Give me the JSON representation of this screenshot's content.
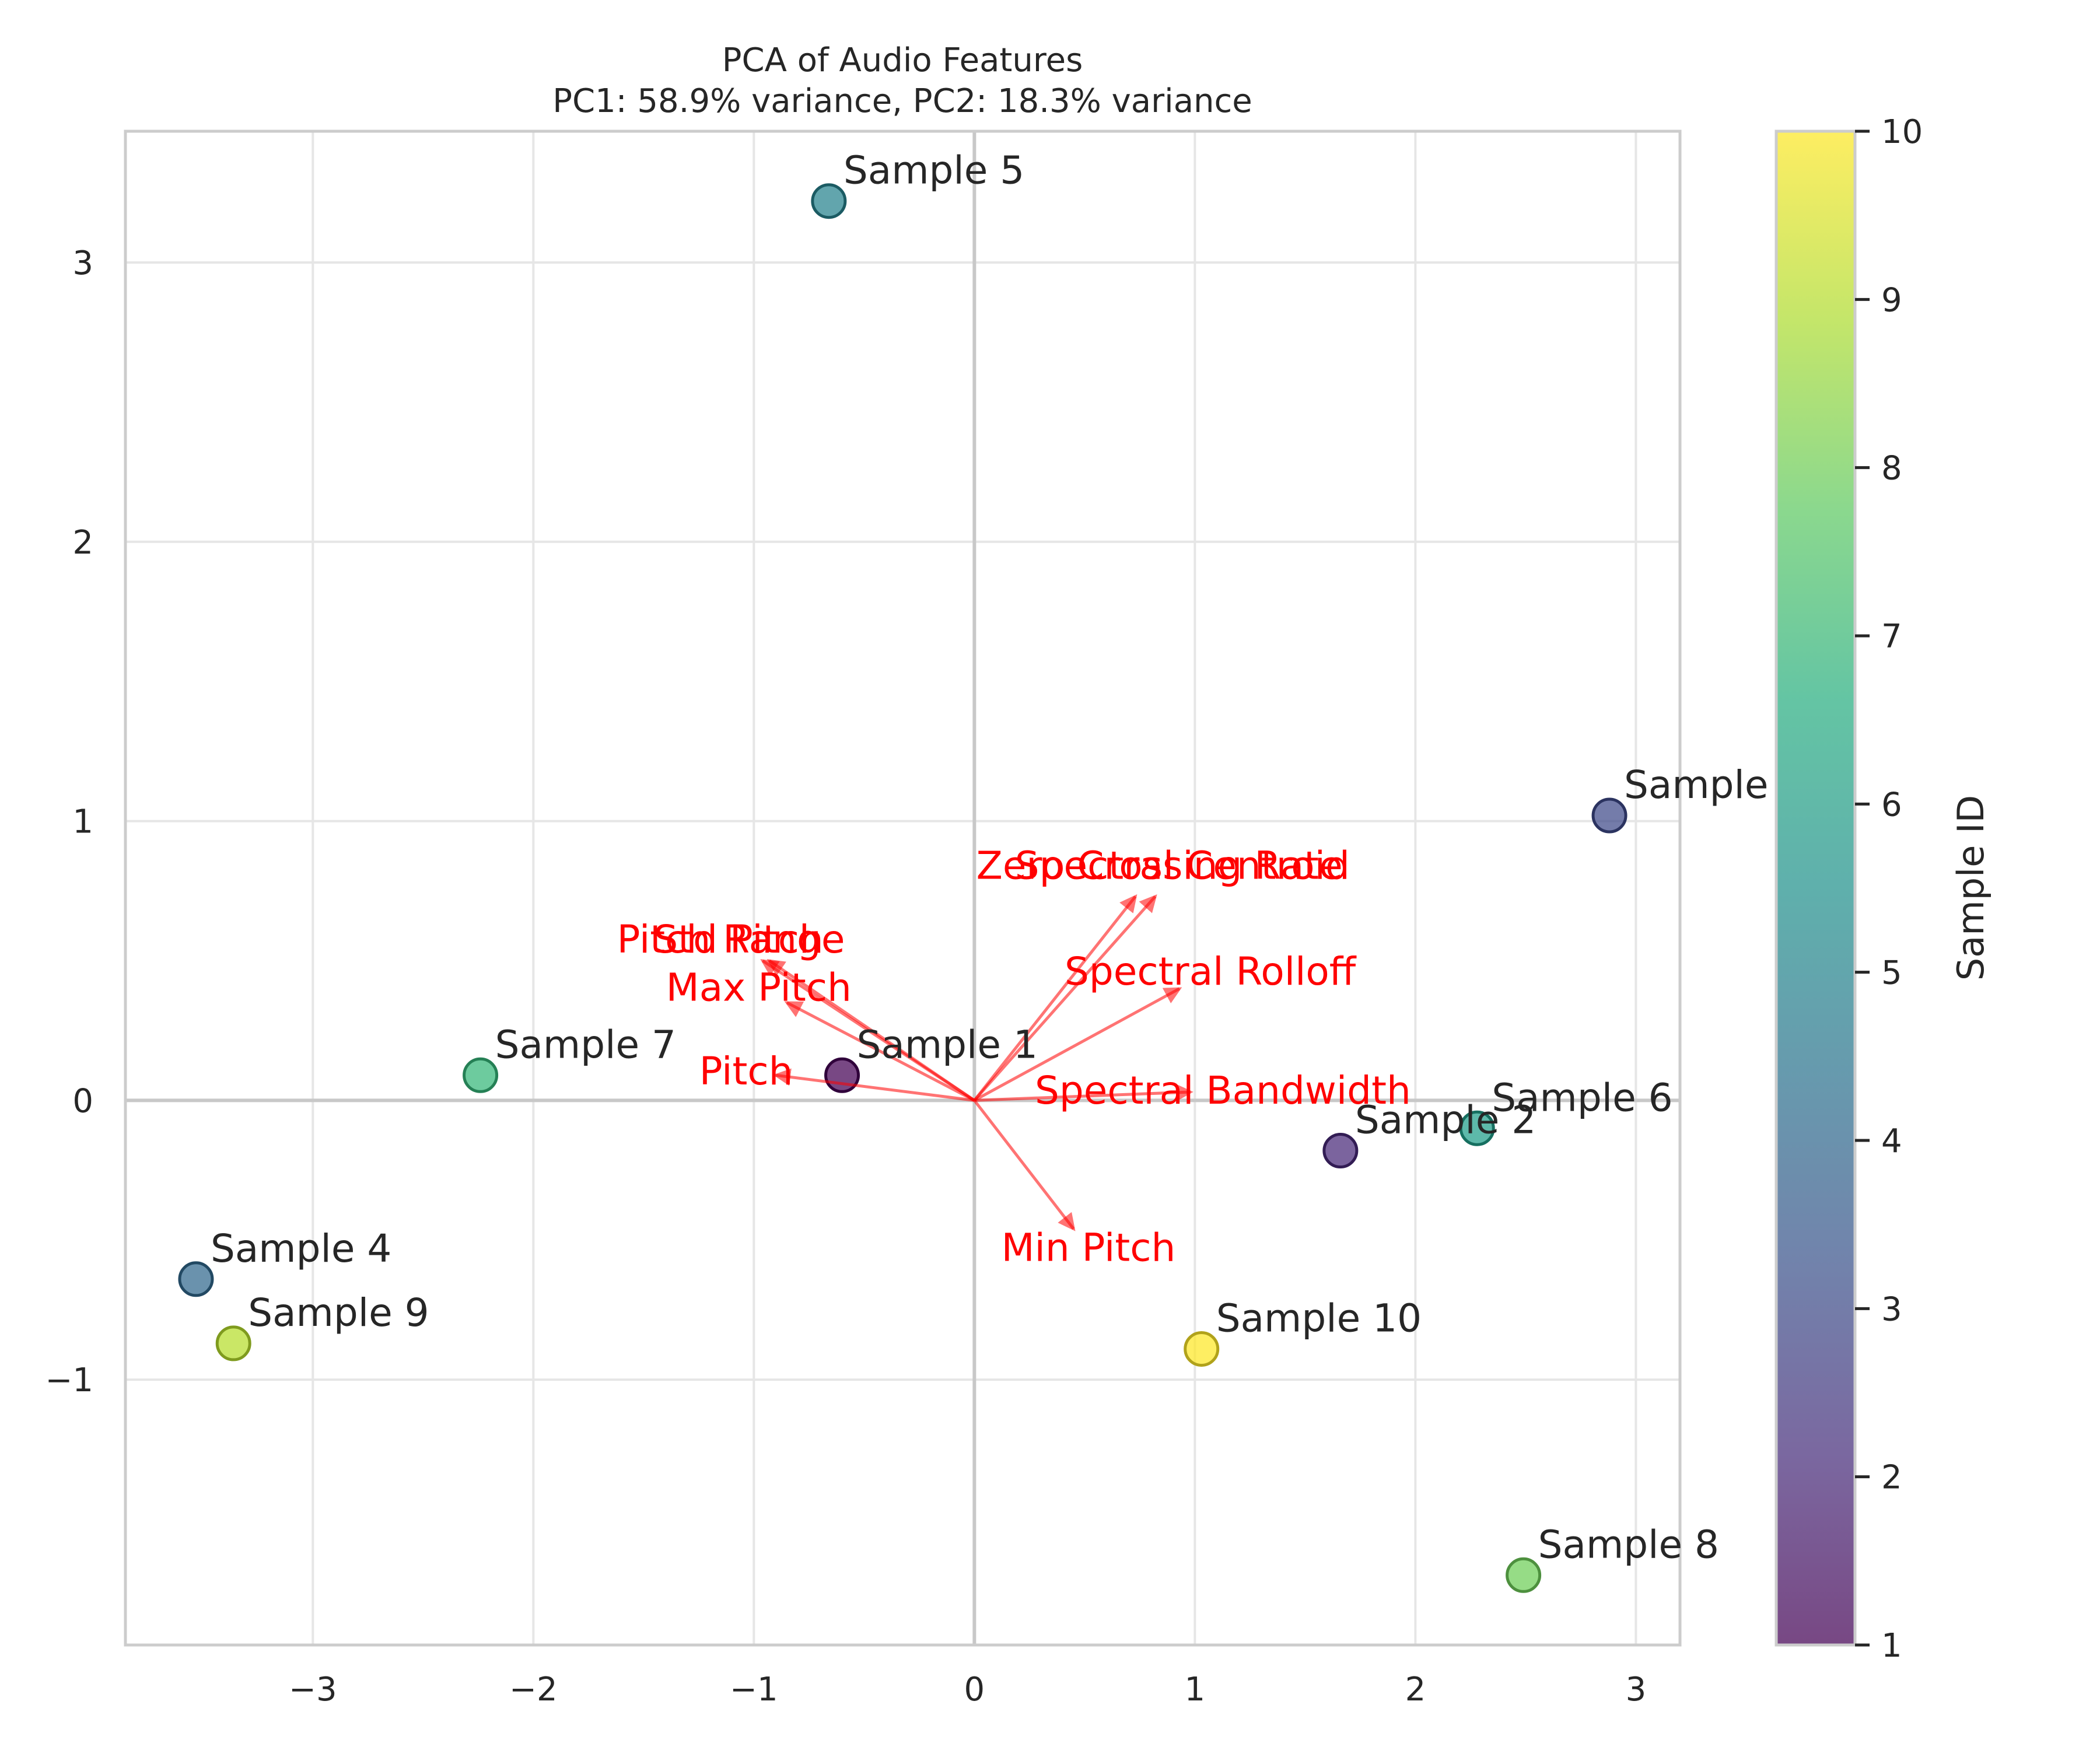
{
  "chart_data": {
    "type": "scatter",
    "title": "PCA of Audio Features",
    "subtitle": "PC1: 58.9% variance, PC2: 18.3% variance",
    "xlabel": "",
    "ylabel": "",
    "xlim": [
      -3.85,
      3.2
    ],
    "ylim": [
      -1.95,
      3.47
    ],
    "xticks": [
      -3,
      -2,
      -1,
      0,
      1,
      2,
      3
    ],
    "yticks": [
      -1,
      0,
      1,
      2,
      3
    ],
    "xtick_labels": [
      "−3",
      "−2",
      "−1",
      "0",
      "1",
      "2",
      "3"
    ],
    "ytick_labels": [
      "−1",
      "0",
      "1",
      "2",
      "3"
    ],
    "grid": true,
    "colormap": "viridis",
    "colorbar": {
      "label": "Sample ID",
      "range": [
        1,
        10
      ],
      "ticks": [
        1,
        2,
        3,
        4,
        5,
        6,
        7,
        8,
        9,
        10
      ],
      "tick_labels": [
        "1",
        "2",
        "3",
        "4",
        "5",
        "6",
        "7",
        "8",
        "9",
        "10"
      ]
    },
    "points": [
      {
        "label": "Sample 1",
        "id": 1,
        "x": -0.6,
        "y": 0.09
      },
      {
        "label": "Sample 2",
        "id": 2,
        "x": 1.66,
        "y": -0.18
      },
      {
        "label": "Sample",
        "id": 3,
        "x": 2.88,
        "y": 1.02
      },
      {
        "label": "Sample 4",
        "id": 4,
        "x": -3.53,
        "y": -0.64
      },
      {
        "label": "Sample 5",
        "id": 5,
        "x": -0.66,
        "y": 3.22
      },
      {
        "label": "Sample 6",
        "id": 6,
        "x": 2.28,
        "y": -0.1
      },
      {
        "label": "Sample 7",
        "id": 7,
        "x": -2.24,
        "y": 0.09
      },
      {
        "label": "Sample 8",
        "id": 8,
        "x": 2.49,
        "y": -1.7
      },
      {
        "label": "Sample 9",
        "id": 9,
        "x": -3.36,
        "y": -0.87
      },
      {
        "label": "Sample 10",
        "id": 10,
        "x": 1.03,
        "y": -0.89
      }
    ],
    "loadings": [
      {
        "feature": "Pitch",
        "x": -0.9,
        "y": 0.09
      },
      {
        "feature": "Pitch Range",
        "x": -0.96,
        "y": 0.5
      },
      {
        "feature": "Std Pitch",
        "x": -0.93,
        "y": 0.5
      },
      {
        "feature": "Max Pitch",
        "x": -0.85,
        "y": 0.35
      },
      {
        "feature": "Min Pitch",
        "x": 0.45,
        "y": -0.46
      },
      {
        "feature": "Zero Crossing Rate",
        "x": 0.73,
        "y": 0.73
      },
      {
        "feature": "Spectral Centroid",
        "x": 0.82,
        "y": 0.73
      },
      {
        "feature": "Spectral Rolloff",
        "x": 0.93,
        "y": 0.4
      },
      {
        "feature": "Spectral Bandwidth",
        "x": 0.98,
        "y": 0.03
      }
    ],
    "colors": {
      "arrow": "#ff0000",
      "grid": "#e6e6e6",
      "axis_zero": "#c8c8c8",
      "frame": "#cccccc"
    }
  }
}
